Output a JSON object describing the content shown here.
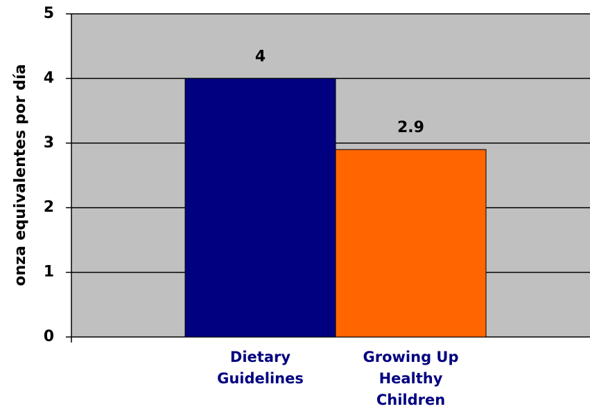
{
  "chart_data": {
    "type": "bar",
    "y_label": "onza equivalentes por día",
    "categories": [
      "Dietary Guidelines",
      "Growing Up Healthy Children"
    ],
    "values": [
      4,
      2.9
    ],
    "colors": [
      "#000080",
      "#ff6600"
    ],
    "category_label_color": "#000080",
    "ylim": [
      0,
      5
    ],
    "yticks": [
      0,
      1,
      2,
      3,
      4,
      5
    ],
    "grid": true
  }
}
